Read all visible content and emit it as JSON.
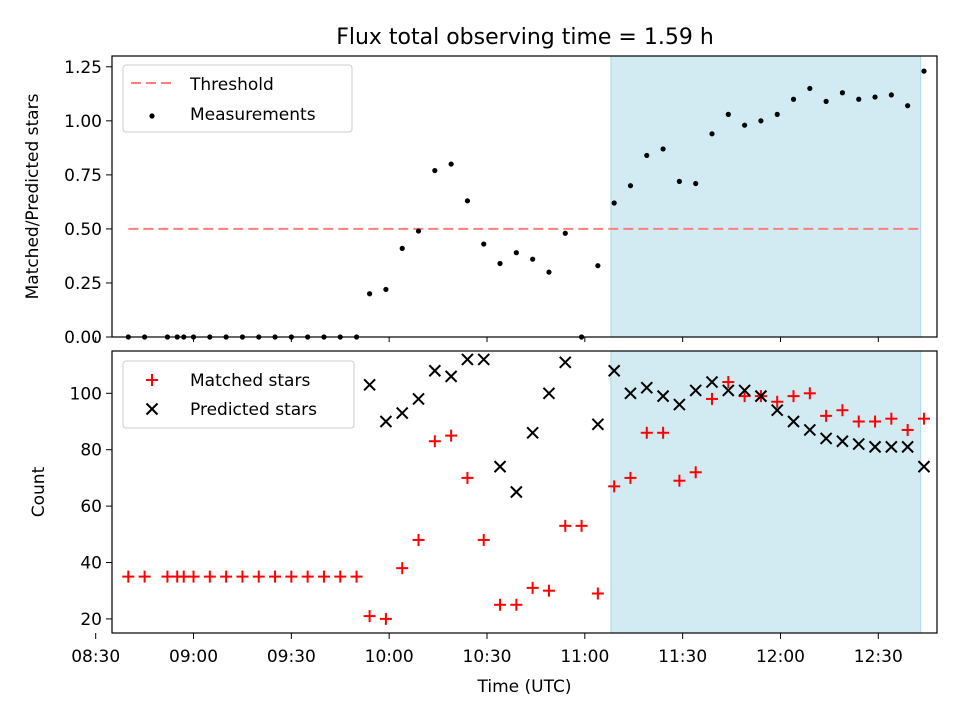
{
  "title": "Flux total observing time = 1.59 h",
  "colors": {
    "threshold": "#ff7f7f",
    "measurement": "#000000",
    "matched": "#ff0000",
    "predicted": "#000000",
    "shade": "#add8e6"
  },
  "chart_data": [
    {
      "type": "scatter",
      "ylabel": "Matched/Predicted stars",
      "ylim": [
        0,
        1.3
      ],
      "yticks": [
        "0.00",
        "0.25",
        "0.50",
        "0.75",
        "1.00",
        "1.25"
      ],
      "legend_placement": "top-left",
      "shaded_x_range": [
        "11:08",
        "12:43"
      ],
      "threshold": {
        "name": "Threshold",
        "value": 0.5,
        "x_range": [
          "08:40",
          "12:43"
        ]
      },
      "series": [
        {
          "name": "Measurements",
          "x": [
            "08:40",
            "08:45",
            "08:52",
            "08:55",
            "08:57",
            "09:00",
            "09:05",
            "09:10",
            "09:15",
            "09:20",
            "09:25",
            "09:30",
            "09:35",
            "09:40",
            "09:45",
            "09:50",
            "09:54",
            "09:59",
            "10:04",
            "10:09",
            "10:14",
            "10:19",
            "10:24",
            "10:29",
            "10:34",
            "10:39",
            "10:44",
            "10:49",
            "10:54",
            "10:59",
            "11:04",
            "11:09",
            "11:14",
            "11:19",
            "11:24",
            "11:29",
            "11:34",
            "11:39",
            "11:44",
            "11:49",
            "11:54",
            "11:59",
            "12:04",
            "12:09",
            "12:14",
            "12:19",
            "12:24",
            "12:29",
            "12:34",
            "12:39",
            "12:44"
          ],
          "y": [
            0,
            0,
            0,
            0,
            0,
            0,
            0,
            0,
            0,
            0,
            0,
            0,
            0,
            0,
            0,
            0,
            0.2,
            0.22,
            0.41,
            0.49,
            0.77,
            0.8,
            0.63,
            0.43,
            0.34,
            0.39,
            0.36,
            0.3,
            0.48,
            0,
            0.33,
            0.62,
            0.7,
            0.84,
            0.87,
            0.72,
            0.71,
            0.94,
            1.03,
            0.98,
            1.0,
            1.03,
            1.1,
            1.15,
            1.09,
            1.13,
            1.1,
            1.11,
            1.12,
            1.07,
            1.23
          ]
        }
      ]
    },
    {
      "type": "scatter",
      "xlabel": "Time (UTC)",
      "ylabel": "Count",
      "ylim": [
        15,
        115
      ],
      "yticks": [
        "20",
        "40",
        "60",
        "80",
        "100"
      ],
      "xlim": [
        "08:35",
        "12:48"
      ],
      "xticks": [
        "08:30",
        "09:00",
        "09:30",
        "10:00",
        "10:30",
        "11:00",
        "11:30",
        "12:00",
        "12:30"
      ],
      "legend_placement": "top-left",
      "shaded_x_range": [
        "11:08",
        "12:43"
      ],
      "series": [
        {
          "name": "Matched stars",
          "x": [
            "08:40",
            "08:45",
            "08:52",
            "08:55",
            "08:57",
            "09:00",
            "09:05",
            "09:10",
            "09:15",
            "09:20",
            "09:25",
            "09:30",
            "09:35",
            "09:40",
            "09:45",
            "09:50",
            "09:54",
            "09:59",
            "10:04",
            "10:09",
            "10:14",
            "10:19",
            "10:24",
            "10:29",
            "10:34",
            "10:39",
            "10:44",
            "10:49",
            "10:54",
            "10:59",
            "11:04",
            "11:09",
            "11:14",
            "11:19",
            "11:24",
            "11:29",
            "11:34",
            "11:39",
            "11:44",
            "11:49",
            "11:54",
            "11:59",
            "12:04",
            "12:09",
            "12:14",
            "12:19",
            "12:24",
            "12:29",
            "12:34",
            "12:39",
            "12:44"
          ],
          "y": [
            35,
            35,
            35,
            35,
            35,
            35,
            35,
            35,
            35,
            35,
            35,
            35,
            35,
            35,
            35,
            35,
            21,
            20,
            38,
            48,
            83,
            85,
            70,
            48,
            25,
            25,
            31,
            30,
            53,
            53,
            29,
            67,
            70,
            86,
            86,
            69,
            72,
            98,
            104,
            99,
            99,
            97,
            99,
            100,
            92,
            94,
            90,
            90,
            91,
            87,
            91
          ]
        },
        {
          "name": "Predicted stars",
          "x": [
            "09:54",
            "09:59",
            "10:04",
            "10:09",
            "10:14",
            "10:19",
            "10:24",
            "10:29",
            "10:34",
            "10:39",
            "10:44",
            "10:49",
            "10:54",
            "11:04",
            "11:09",
            "11:14",
            "11:19",
            "11:24",
            "11:29",
            "11:34",
            "11:39",
            "11:44",
            "11:49",
            "11:54",
            "11:59",
            "12:04",
            "12:09",
            "12:14",
            "12:19",
            "12:24",
            "12:29",
            "12:34",
            "12:39",
            "12:44"
          ],
          "y": [
            103,
            90,
            93,
            98,
            108,
            106,
            112,
            112,
            74,
            65,
            86,
            100,
            111,
            89,
            108,
            100,
            102,
            99,
            96,
            101,
            104,
            101,
            101,
            99,
            94,
            90,
            87,
            84,
            83,
            82,
            81,
            81,
            81,
            74
          ]
        }
      ]
    }
  ]
}
